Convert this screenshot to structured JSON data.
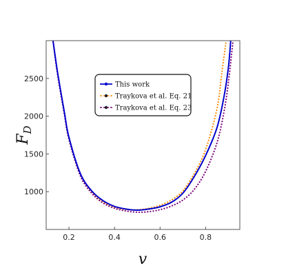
{
  "chart_data": {
    "type": "line",
    "xlabel": "v",
    "ylabel": "F",
    "ylabel_sub": "D",
    "xlim": [
      0.1,
      0.95
    ],
    "ylim": [
      500,
      3000
    ],
    "x_ticks": [
      0.2,
      0.4,
      0.6,
      0.8
    ],
    "x_tick_labels": [
      "0.2",
      "0.4",
      "0.6",
      "0.8"
    ],
    "y_ticks": [
      1000,
      1500,
      2000,
      2500
    ],
    "y_tick_labels": [
      "1000",
      "1500",
      "2000",
      "2500"
    ],
    "grid": false,
    "legend_position": "top-center",
    "series": [
      {
        "name": "This work",
        "color": "#0000cc",
        "dash": "solid",
        "x": [
          0.13,
          0.15,
          0.18,
          0.2,
          0.25,
          0.3,
          0.35,
          0.4,
          0.45,
          0.5,
          0.55,
          0.6,
          0.65,
          0.7,
          0.75,
          0.8,
          0.85,
          0.88,
          0.9,
          0.91
        ],
        "y": [
          3000,
          2580,
          2050,
          1720,
          1240,
          1010,
          880,
          805,
          770,
          755,
          770,
          800,
          860,
          980,
          1200,
          1480,
          1850,
          2250,
          2650,
          3000
        ]
      },
      {
        "name": "Traykova et al. Eq. 21",
        "color": "#ff8c00",
        "dash": "dotted",
        "x": [
          0.13,
          0.15,
          0.18,
          0.2,
          0.25,
          0.3,
          0.35,
          0.4,
          0.45,
          0.5,
          0.55,
          0.6,
          0.65,
          0.7,
          0.75,
          0.8,
          0.85,
          0.87,
          0.89
        ],
        "y": [
          3000,
          2560,
          2030,
          1700,
          1220,
          990,
          865,
          795,
          765,
          760,
          780,
          820,
          890,
          1010,
          1240,
          1560,
          2100,
          2550,
          3000
        ]
      },
      {
        "name": "Traykova et al. Eq. 23",
        "color": "#7a007a",
        "dash": "dotted",
        "x": [
          0.13,
          0.15,
          0.18,
          0.2,
          0.25,
          0.3,
          0.35,
          0.4,
          0.45,
          0.5,
          0.55,
          0.6,
          0.65,
          0.7,
          0.75,
          0.8,
          0.85,
          0.88,
          0.9,
          0.92
        ],
        "y": [
          3000,
          2550,
          2020,
          1690,
          1210,
          980,
          850,
          780,
          745,
          728,
          735,
          762,
          810,
          890,
          1030,
          1270,
          1650,
          2050,
          2450,
          3000
        ]
      }
    ]
  }
}
